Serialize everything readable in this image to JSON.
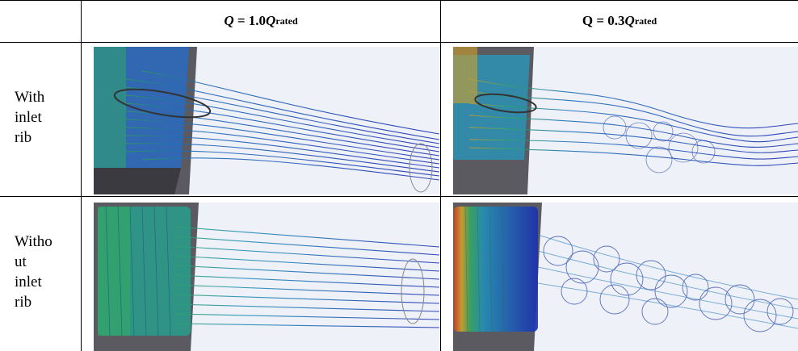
{
  "header": {
    "col1": {
      "prefix_var": "Q",
      "eq": " = 1.0",
      "var": "Q",
      "sub": "rated"
    },
    "col2": {
      "prefix_text": "Q = 0.3",
      "var": "Q",
      "sub": "rated"
    }
  },
  "rows": [
    {
      "label_lines": [
        "With",
        "inlet",
        "rib"
      ]
    },
    {
      "label_lines": [
        "Witho",
        "ut",
        "inlet",
        "rib"
      ]
    }
  ],
  "images": [
    {
      "name": "streamlines-with-rib-rated",
      "flow": "uniform"
    },
    {
      "name": "streamlines-with-rib-partload",
      "flow": "swirl"
    },
    {
      "name": "streamlines-without-rib-rated",
      "flow": "uniform-swirl-inlet"
    },
    {
      "name": "streamlines-without-rib-partload",
      "flow": "chaotic"
    }
  ]
}
